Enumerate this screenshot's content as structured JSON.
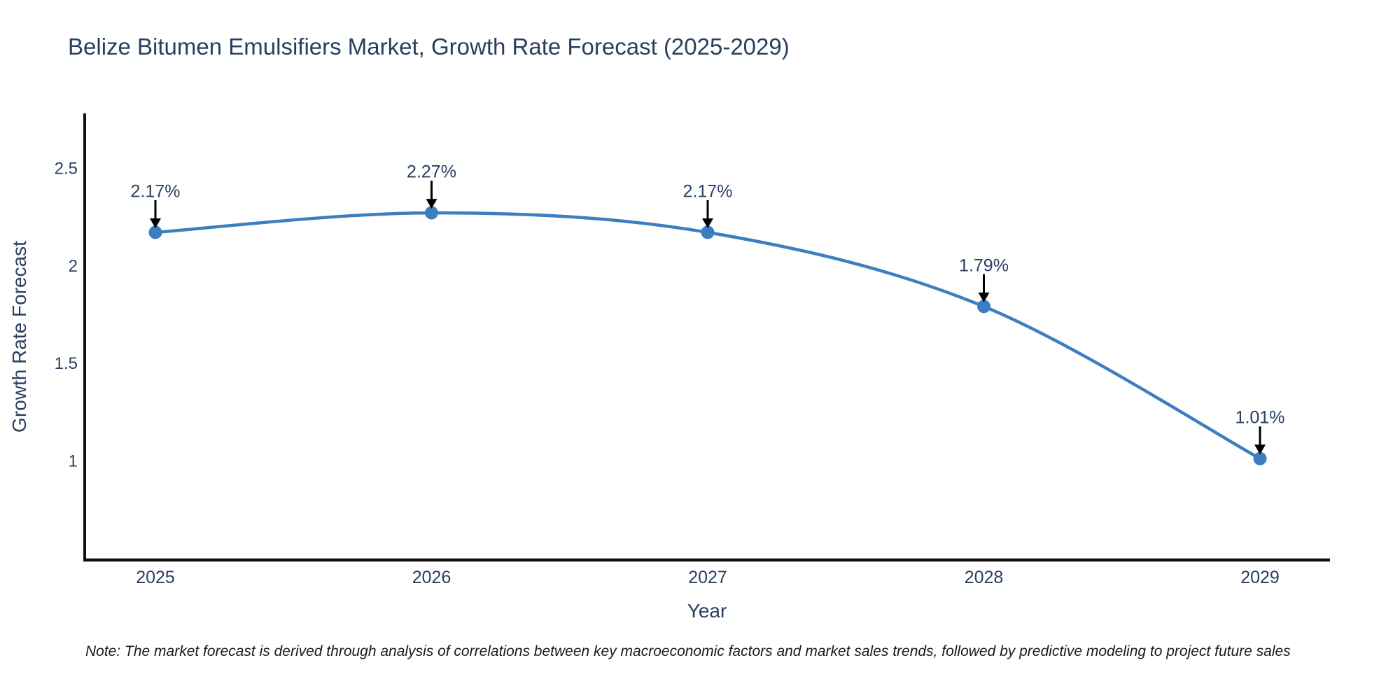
{
  "chart_data": {
    "type": "line",
    "title": "Belize Bitumen Emulsifiers Market, Growth Rate Forecast (2025-2029)",
    "xlabel": "Year",
    "ylabel": "Growth Rate Forecast",
    "categories": [
      "2025",
      "2026",
      "2027",
      "2028",
      "2029"
    ],
    "series": [
      {
        "name": "Growth Rate Forecast",
        "values": [
          2.17,
          2.27,
          2.17,
          1.79,
          1.01
        ],
        "point_labels": [
          "2.17%",
          "2.27%",
          "2.17%",
          "1.79%",
          "1.01%"
        ]
      }
    ],
    "y_ticks": [
      1,
      1.5,
      2,
      2.5
    ],
    "y_tick_labels": [
      "1",
      "1.5",
      "2",
      "2.5"
    ],
    "ylim": [
      0.49,
      2.78
    ],
    "grid": false,
    "legend_position": "none",
    "line_shape": "spline",
    "annotations_have_arrows": true,
    "colors": {
      "line": "#3d7ebf",
      "marker": "#3d7ebf",
      "arrow": "#000000",
      "label_text": "#2a3f5f",
      "axis_line": "#101010",
      "tick_text": "#2a3f5f",
      "background": "#ffffff"
    }
  },
  "note_text": "Note: The market forecast is derived through analysis of correlations between key macroeconomic factors and market sales trends, followed by predictive modeling to project future sales"
}
